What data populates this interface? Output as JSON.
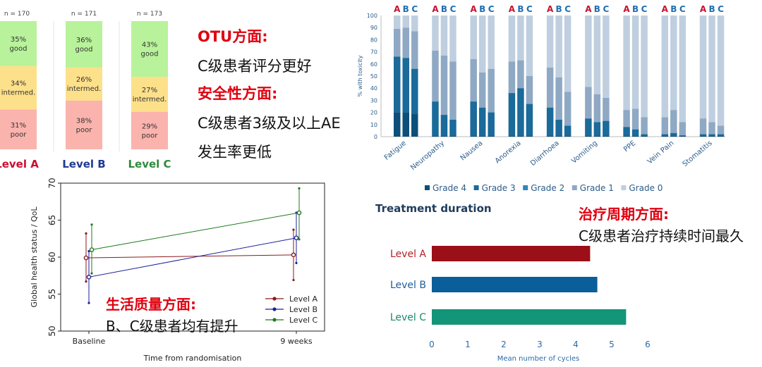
{
  "otu_panel": {
    "columns": [
      {
        "n": "n = 170",
        "label": "Level A",
        "label_color": "#c8102e",
        "segments": [
          {
            "pct": "35%",
            "text": "good",
            "value": 35
          },
          {
            "pct": "34%",
            "text": "intermed.",
            "value": 34
          },
          {
            "pct": "31%",
            "text": "poor",
            "value": 31
          }
        ]
      },
      {
        "n": "n = 171",
        "label": "Level B",
        "label_color": "#1f3a93",
        "segments": [
          {
            "pct": "36%",
            "text": "good",
            "value": 36
          },
          {
            "pct": "26%",
            "text": "intermed.",
            "value": 26
          },
          {
            "pct": "38%",
            "text": "poor",
            "value": 38
          }
        ]
      },
      {
        "n": "n = 173",
        "label": "Level C",
        "label_color": "#2e8b3a",
        "segments": [
          {
            "pct": "43%",
            "text": "good",
            "value": 43
          },
          {
            "pct": "27%",
            "text": "intermed.",
            "value": 27
          },
          {
            "pct": "29%",
            "text": "poor",
            "value": 29
          }
        ]
      }
    ],
    "colors": {
      "good": "#b8f29a",
      "intermed": "#fde08a",
      "poor": "#fbb3ad"
    }
  },
  "notes": {
    "otu_heading": "OTU方面:",
    "otu_text": "C级患者评分更好",
    "safety_heading": "安全性方面:",
    "safety_text_1": "C级患者3级及以上AE",
    "safety_text_2": "发生率更低",
    "cycle_heading": "治疗周期方面:",
    "cycle_text": "C级患者治疗持续时间最久",
    "qol_heading": "生活质量方面:",
    "qol_text": "B、C级患者均有提升"
  },
  "chart_data": [
    {
      "type": "bar",
      "stacked": true,
      "ylabel": "% with toxicity",
      "ylim": [
        0,
        100
      ],
      "yticks": [
        0,
        10,
        20,
        30,
        40,
        50,
        60,
        70,
        80,
        90,
        100
      ],
      "group_labels": [
        "A",
        "B",
        "C"
      ],
      "categories": [
        "Fatigue",
        "Neuropathy",
        "Nausea",
        "Anorexia",
        "Diarrhoea",
        "Vomiting",
        "PPE",
        "Vein Pain",
        "Stomatitis"
      ],
      "legend": [
        "Grade 4",
        "Grade 3",
        "Grade 2",
        "Grade 1",
        "Grade 0"
      ],
      "legend_colors": [
        "#0d4f7a",
        "#1a6a9a",
        "#2f86b8",
        "#8fa9c4",
        "#bfcfe0"
      ],
      "series_note": "values per category are [A,B,C] cumulative tops for Grade 4, Grade 3, Grade 2, Grade 1",
      "data": {
        "Fatigue": {
          "g4": [
            20,
            20,
            19
          ],
          "g3": [
            66,
            65,
            56
          ],
          "g2": [
            66,
            65,
            56
          ],
          "g1": [
            89,
            90,
            87
          ]
        },
        "Neuropathy": {
          "g4": [
            1,
            1,
            1
          ],
          "g3": [
            29,
            18,
            14
          ],
          "g2": [
            29,
            18,
            14
          ],
          "g1": [
            71,
            67,
            62
          ]
        },
        "Nausea": {
          "g4": [
            1,
            1,
            1
          ],
          "g3": [
            29,
            24,
            20
          ],
          "g2": [
            29,
            24,
            20
          ],
          "g1": [
            64,
            53,
            56
          ]
        },
        "Anorexia": {
          "g4": [
            1,
            1,
            1
          ],
          "g3": [
            36,
            40,
            27
          ],
          "g2": [
            36,
            40,
            27
          ],
          "g1": [
            62,
            63,
            50
          ]
        },
        "Diarrhoea": {
          "g4": [
            1,
            1,
            1
          ],
          "g3": [
            24,
            14,
            9
          ],
          "g2": [
            24,
            14,
            9
          ],
          "g1": [
            57,
            49,
            37
          ]
        },
        "Vomiting": {
          "g4": [
            1,
            1,
            1
          ],
          "g3": [
            15,
            12,
            13
          ],
          "g2": [
            15,
            12,
            13
          ],
          "g1": [
            41,
            35,
            32
          ]
        },
        "PPE": {
          "g4": [
            1,
            1,
            1
          ],
          "g3": [
            8,
            6,
            2
          ],
          "g2": [
            8,
            6,
            2
          ],
          "g1": [
            22,
            23,
            16
          ]
        },
        "Vein Pain": {
          "g4": [
            1,
            1,
            1
          ],
          "g3": [
            2,
            3,
            1
          ],
          "g2": [
            2,
            3,
            1
          ],
          "g1": [
            16,
            22,
            12
          ]
        },
        "Stomatitis": {
          "g4": [
            1,
            1,
            1
          ],
          "g3": [
            2,
            2,
            2
          ],
          "g2": [
            2,
            2,
            2
          ],
          "g1": [
            15,
            12,
            9
          ]
        }
      }
    },
    {
      "type": "line",
      "ylabel": "Global health status / QoL",
      "xlabel": "Time from randomisation",
      "categories": [
        "Baseline",
        "9 weeks"
      ],
      "ylim": [
        50,
        70
      ],
      "yticks": [
        50,
        55,
        60,
        65,
        70
      ],
      "series": [
        {
          "name": "Level A",
          "color": "#8b1a1a",
          "values": [
            59.9,
            60.3
          ],
          "err_low": [
            56.7,
            56.9
          ],
          "err_high": [
            63.2,
            63.7
          ]
        },
        {
          "name": "Level B",
          "color": "#1f1f9e",
          "values": [
            57.3,
            62.6
          ],
          "err_low": [
            53.8,
            59.2
          ],
          "err_high": [
            60.8,
            66.0
          ]
        },
        {
          "name": "Level C",
          "color": "#1f7a1f",
          "values": [
            61.0,
            66.0
          ],
          "err_low": [
            57.8,
            62.4
          ],
          "err_high": [
            64.4,
            69.3
          ]
        }
      ]
    },
    {
      "type": "bar",
      "orientation": "horizontal",
      "title": "Treatment duration",
      "xlabel": "Mean number of cycles",
      "xlim": [
        0,
        6
      ],
      "xticks": [
        0,
        1,
        2,
        3,
        4,
        5,
        6
      ],
      "categories": [
        "Level A",
        "Level B",
        "Level C"
      ],
      "values": [
        4.4,
        4.6,
        5.4
      ],
      "colors": [
        "#9b0f18",
        "#0a5e9a",
        "#13957a"
      ],
      "label_colors": [
        "#b3202a",
        "#1f5e9a",
        "#1a8a6a"
      ]
    }
  ]
}
